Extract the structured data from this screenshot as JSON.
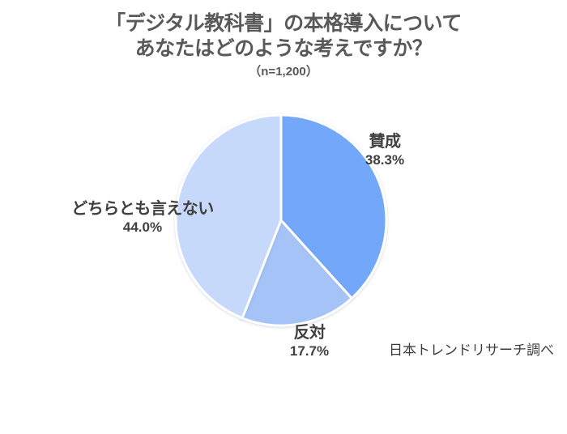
{
  "title": {
    "line1": "「デジタル教科書」の本格導入について",
    "line2": "あなたはどのような考えですか？",
    "sample_note": "（n=1,200）"
  },
  "source_credit": "日本トレンドリサーチ調べ",
  "chart_data": {
    "type": "pie",
    "title": "「デジタル教科書」の本格導入について あなたはどのような考えですか？",
    "sample_size_label": "n=1,200",
    "unit": "%",
    "start_angle_deg": 0,
    "direction": "clockwise",
    "legend_position": "none-direct-labels",
    "slice_border_color": "#ffffff",
    "slices": [
      {
        "label": "賛成",
        "value": 38.3,
        "pct_label": "38.3%",
        "color": "#73a7f9"
      },
      {
        "label": "反対",
        "value": 17.7,
        "pct_label": "17.7%",
        "color": "#a5c3f7"
      },
      {
        "label": "どちらとも言えない",
        "value": 44.0,
        "pct_label": "44.0%",
        "color": "#c6d9fa"
      }
    ]
  }
}
